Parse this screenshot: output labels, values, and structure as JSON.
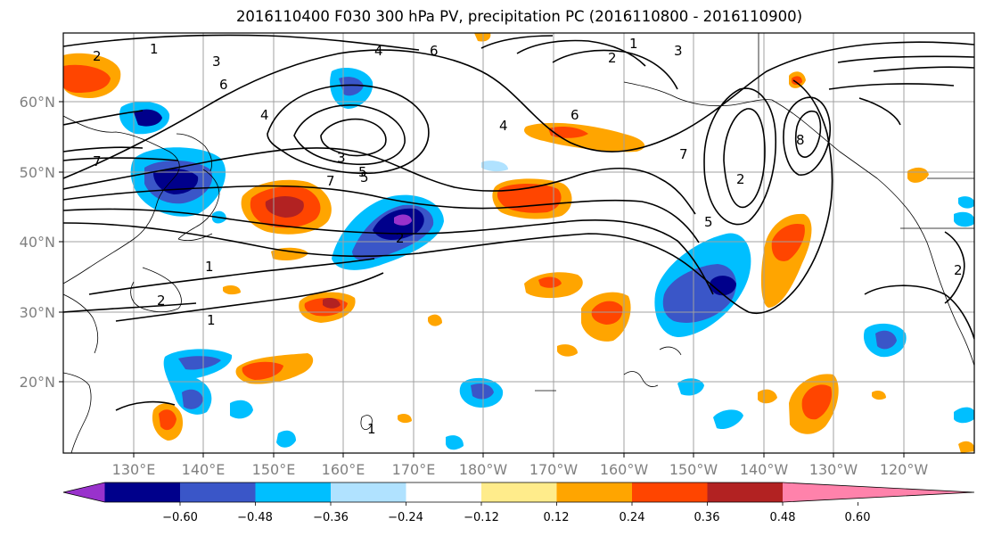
{
  "title": "2016110400 F030 300 hPa PV, precipitation PC (2016110800 - 2016110900)",
  "map": {
    "lat_labels": [
      "60°N",
      "50°N",
      "40°N",
      "30°N",
      "20°N"
    ],
    "lon_labels": [
      "130°E",
      "140°E",
      "150°E",
      "160°E",
      "170°E",
      "180°W",
      "170°W",
      "160°W",
      "150°W",
      "140°W",
      "130°W",
      "120°W"
    ],
    "contour_labels": [
      "1",
      "2",
      "3",
      "4",
      "5",
      "6",
      "7",
      "8",
      "1",
      "2",
      "3",
      "4",
      "5",
      "6",
      "7",
      "1",
      "2",
      "1",
      "2",
      "7",
      "6",
      "4",
      "5",
      "1",
      "2",
      "3",
      "2"
    ]
  },
  "colorbar": {
    "ticks": [
      "−0.60",
      "−0.48",
      "−0.36",
      "−0.24",
      "−0.12",
      "0.12",
      "0.24",
      "0.36",
      "0.48",
      "0.60"
    ],
    "colors": [
      "#9932cc",
      "#00008b",
      "#3a56c8",
      "#00bfff",
      "#b0e2ff",
      "#ffffff",
      "#ffec8b",
      "#ffa500",
      "#ff4500",
      "#b22222",
      "#ff82ab"
    ]
  }
}
